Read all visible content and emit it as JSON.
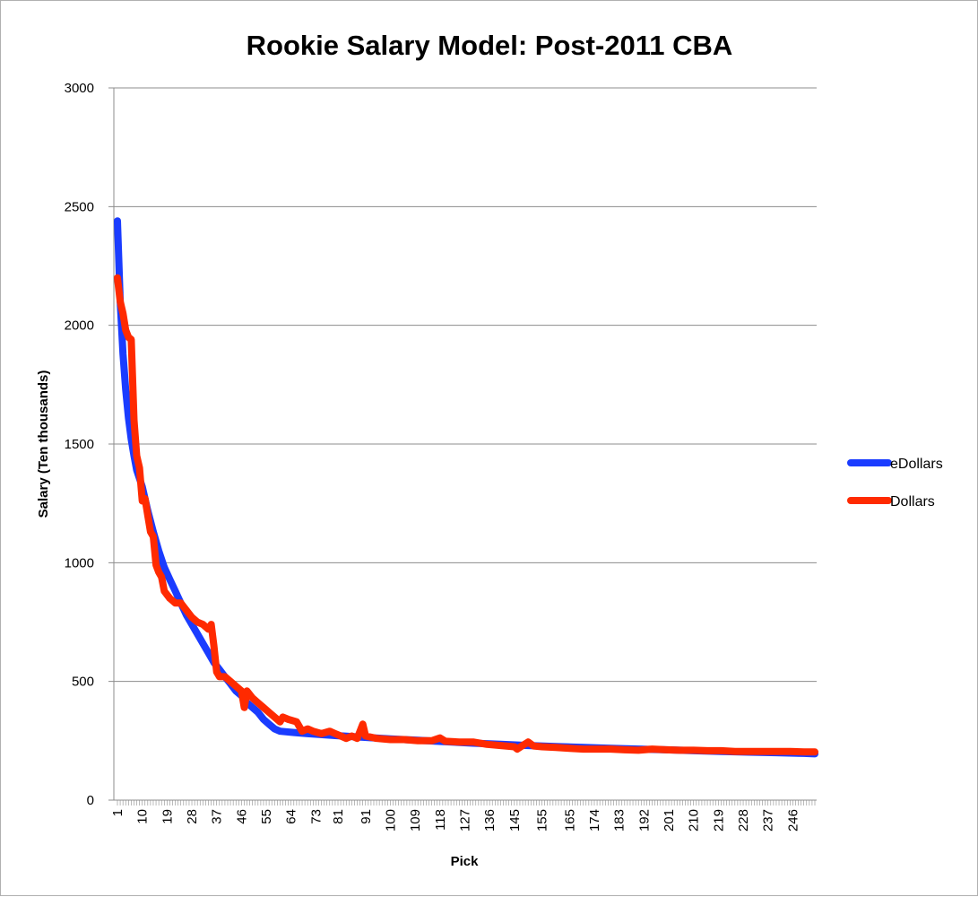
{
  "chart_data": {
    "type": "line",
    "title": "Rookie Salary Model: Post-2011 CBA",
    "xlabel": "Pick",
    "ylabel": "Salary (Ten thousands)",
    "ylim": [
      0,
      3000
    ],
    "yticks": [
      "0",
      "500",
      "1000",
      "1500",
      "2000",
      "2500",
      "3000"
    ],
    "xlim": [
      1,
      254
    ],
    "xtick_labels": [
      "1",
      "10",
      "19",
      "28",
      "37",
      "46",
      "55",
      "64",
      "73",
      "81",
      "91",
      "100",
      "109",
      "118",
      "127",
      "136",
      "145",
      "155",
      "165",
      "174",
      "183",
      "192",
      "201",
      "210",
      "219",
      "228",
      "237",
      "246"
    ],
    "grid": "horizontal",
    "legend_position": "right",
    "series": [
      {
        "name": "eDollars",
        "color": "#1a3cff",
        "points": [
          [
            1,
            2440
          ],
          [
            2,
            2100
          ],
          [
            3,
            1880
          ],
          [
            4,
            1730
          ],
          [
            5,
            1610
          ],
          [
            6,
            1520
          ],
          [
            7,
            1450
          ],
          [
            8,
            1390
          ],
          [
            10,
            1320
          ],
          [
            12,
            1220
          ],
          [
            14,
            1130
          ],
          [
            16,
            1050
          ],
          [
            18,
            980
          ],
          [
            20,
            930
          ],
          [
            22,
            880
          ],
          [
            24,
            830
          ],
          [
            26,
            780
          ],
          [
            28,
            740
          ],
          [
            30,
            700
          ],
          [
            32,
            660
          ],
          [
            34,
            620
          ],
          [
            36,
            580
          ],
          [
            38,
            550
          ],
          [
            40,
            520
          ],
          [
            42,
            490
          ],
          [
            44,
            460
          ],
          [
            46,
            440
          ],
          [
            48,
            410
          ],
          [
            50,
            390
          ],
          [
            52,
            370
          ],
          [
            54,
            340
          ],
          [
            56,
            320
          ],
          [
            58,
            300
          ],
          [
            60,
            290
          ],
          [
            65,
            285
          ],
          [
            70,
            280
          ],
          [
            80,
            272
          ],
          [
            90,
            265
          ],
          [
            100,
            258
          ],
          [
            110,
            252
          ],
          [
            120,
            246
          ],
          [
            130,
            240
          ],
          [
            140,
            235
          ],
          [
            150,
            230
          ],
          [
            160,
            226
          ],
          [
            170,
            222
          ],
          [
            180,
            218
          ],
          [
            190,
            215
          ],
          [
            200,
            212
          ],
          [
            210,
            208
          ],
          [
            220,
            205
          ],
          [
            230,
            202
          ],
          [
            240,
            200
          ],
          [
            250,
            197
          ],
          [
            254,
            195
          ]
        ]
      },
      {
        "name": "Dollars",
        "color": "#ff2a00",
        "points": [
          [
            1,
            2200
          ],
          [
            2,
            2100
          ],
          [
            3,
            2050
          ],
          [
            4,
            1980
          ],
          [
            5,
            1950
          ],
          [
            6,
            1940
          ],
          [
            7,
            1600
          ],
          [
            8,
            1450
          ],
          [
            9,
            1400
          ],
          [
            10,
            1260
          ],
          [
            11,
            1270
          ],
          [
            12,
            1200
          ],
          [
            13,
            1130
          ],
          [
            14,
            1110
          ],
          [
            15,
            990
          ],
          [
            16,
            960
          ],
          [
            17,
            940
          ],
          [
            18,
            880
          ],
          [
            20,
            850
          ],
          [
            22,
            830
          ],
          [
            24,
            830
          ],
          [
            26,
            800
          ],
          [
            28,
            770
          ],
          [
            30,
            750
          ],
          [
            32,
            740
          ],
          [
            34,
            720
          ],
          [
            35,
            740
          ],
          [
            36,
            650
          ],
          [
            37,
            540
          ],
          [
            38,
            520
          ],
          [
            40,
            520
          ],
          [
            42,
            500
          ],
          [
            44,
            480
          ],
          [
            46,
            460
          ],
          [
            47,
            390
          ],
          [
            48,
            460
          ],
          [
            50,
            430
          ],
          [
            52,
            410
          ],
          [
            54,
            390
          ],
          [
            56,
            370
          ],
          [
            58,
            350
          ],
          [
            60,
            330
          ],
          [
            61,
            350
          ],
          [
            63,
            340
          ],
          [
            66,
            330
          ],
          [
            68,
            290
          ],
          [
            70,
            300
          ],
          [
            72,
            290
          ],
          [
            75,
            280
          ],
          [
            78,
            290
          ],
          [
            80,
            280
          ],
          [
            82,
            270
          ],
          [
            84,
            260
          ],
          [
            86,
            270
          ],
          [
            88,
            260
          ],
          [
            90,
            320
          ],
          [
            91,
            270
          ],
          [
            95,
            260
          ],
          [
            100,
            255
          ],
          [
            105,
            255
          ],
          [
            110,
            250
          ],
          [
            115,
            250
          ],
          [
            118,
            262
          ],
          [
            120,
            248
          ],
          [
            125,
            245
          ],
          [
            130,
            245
          ],
          [
            135,
            235
          ],
          [
            140,
            230
          ],
          [
            145,
            225
          ],
          [
            146,
            215
          ],
          [
            148,
            230
          ],
          [
            150,
            245
          ],
          [
            152,
            228
          ],
          [
            155,
            225
          ],
          [
            160,
            222
          ],
          [
            165,
            218
          ],
          [
            170,
            215
          ],
          [
            175,
            215
          ],
          [
            180,
            215
          ],
          [
            185,
            212
          ],
          [
            190,
            210
          ],
          [
            195,
            215
          ],
          [
            200,
            212
          ],
          [
            205,
            210
          ],
          [
            210,
            210
          ],
          [
            215,
            208
          ],
          [
            220,
            208
          ],
          [
            225,
            205
          ],
          [
            230,
            205
          ],
          [
            235,
            205
          ],
          [
            240,
            205
          ],
          [
            245,
            205
          ],
          [
            250,
            203
          ],
          [
            254,
            203
          ]
        ]
      }
    ]
  }
}
